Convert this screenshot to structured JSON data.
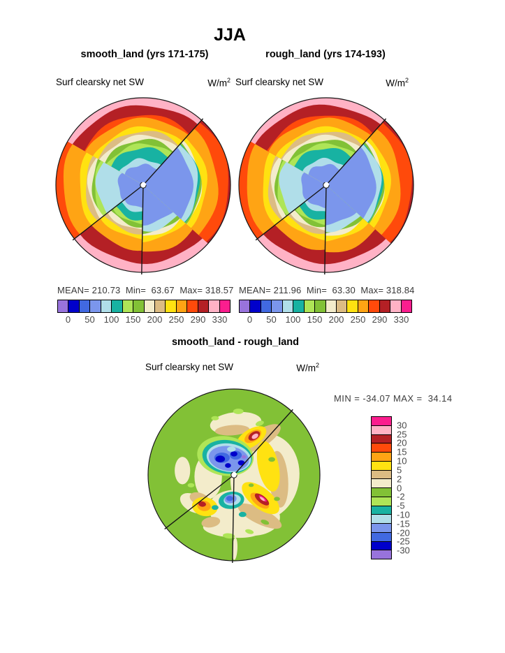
{
  "page": {
    "bg": "#ffffff",
    "title": "JJA"
  },
  "panels": [
    {
      "title": "smooth_land (yrs 171-175)",
      "var_label": "Surf clearsky net SW",
      "units_base": "W/m",
      "units_exp": "2",
      "stats_line": "MEAN= 210.73  Min=  63.67  Max= 318.57"
    },
    {
      "title": "rough_land (yrs 174-193)",
      "var_label": "Surf clearsky net SW",
      "units_base": "W/m",
      "units_exp": "2",
      "stats_line": "MEAN= 211.96  Min=  63.30  Max= 318.84"
    }
  ],
  "diff_panel": {
    "title": "smooth_land - rough_land",
    "var_label": "Surf clearsky net SW",
    "units_base": "W/m",
    "units_exp": "2",
    "minmax_line": "MIN = -34.07 MAX =  34.14"
  },
  "palette": {
    "purple": "#9873DC",
    "darkblue": "#0000CB",
    "royalblue": "#4169E1",
    "cornflower": "#7B96EC",
    "palecyan": "#B0DEE9",
    "teal": "#18B2A2",
    "lightgreen": "#AEE557",
    "green": "#82C136",
    "cream": "#F3ECCB",
    "tan": "#DCBC83",
    "yellow": "#FFE211",
    "orange": "#FFA414",
    "redorange": "#FF4A0B",
    "darkred": "#B42025",
    "pink": "#FFB2C5",
    "magenta": "#FB1E8E"
  },
  "colorbar_h": {
    "cells": [
      "purple",
      "darkblue",
      "royalblue",
      "cornflower",
      "palecyan",
      "teal",
      "lightgreen",
      "green",
      "cream",
      "tan",
      "yellow",
      "orange",
      "redorange",
      "darkred",
      "pink",
      "magenta"
    ],
    "ticks": [
      "0",
      "50",
      "100",
      "150",
      "200",
      "250",
      "290",
      "330"
    ]
  },
  "colorbar_v": {
    "cells": [
      "magenta",
      "pink",
      "darkred",
      "redorange",
      "orange",
      "yellow",
      "tan",
      "cream",
      "green",
      "lightgreen",
      "teal",
      "palecyan",
      "cornflower",
      "royalblue",
      "darkblue",
      "purple"
    ],
    "ticks": [
      "30",
      "25",
      "20",
      "15",
      "10",
      "5",
      "2",
      "0",
      "-2",
      "-5",
      "-10",
      "-15",
      "-20",
      "-25",
      "-30"
    ]
  },
  "polar_band_model": {
    "sector_line_angles_deg": [
      48,
      218,
      269
    ],
    "sectors": [
      {
        "a1": 48,
        "a2": 150,
        "bands": [
          [
            "pink",
            1.0
          ],
          [
            "darkred",
            0.92
          ],
          [
            "redorange",
            0.8
          ],
          [
            "orange",
            0.76
          ],
          [
            "yellow",
            0.66
          ],
          [
            "tan",
            0.615
          ],
          [
            "cream",
            0.57
          ],
          [
            "green",
            0.52
          ],
          [
            "lightgreen",
            0.475
          ],
          [
            "teal",
            0.43
          ],
          [
            "palecyan",
            0.3
          ],
          [
            "cornflower",
            0.24
          ]
        ]
      },
      {
        "a1": 150,
        "a2": 218,
        "bands": [
          [
            "redorange",
            1.0
          ],
          [
            "orange",
            0.92
          ],
          [
            "yellow",
            0.74
          ],
          [
            "tan",
            0.66
          ],
          [
            "cream",
            0.625
          ],
          [
            "green",
            0.59
          ],
          [
            "lightgreen",
            0.56
          ],
          [
            "palecyan",
            0.53
          ],
          [
            "cornflower",
            0.28
          ]
        ]
      },
      {
        "a1": 218,
        "a2": 269,
        "bands": [
          [
            "pink",
            1.0
          ],
          [
            "darkred",
            0.9
          ],
          [
            "orange",
            0.74
          ],
          [
            "yellow",
            0.62
          ],
          [
            "tan",
            0.565
          ],
          [
            "cream",
            0.52
          ],
          [
            "green",
            0.48
          ],
          [
            "lightgreen",
            0.44
          ],
          [
            "teal",
            0.4
          ],
          [
            "palecyan",
            0.32
          ],
          [
            "cornflower",
            0.26
          ]
        ]
      },
      {
        "a1": 269,
        "a2": 318,
        "bands": [
          [
            "pink",
            1.0
          ],
          [
            "darkred",
            0.9
          ],
          [
            "orange",
            0.77
          ],
          [
            "yellow",
            0.645
          ],
          [
            "cream",
            0.585
          ],
          [
            "green",
            0.555
          ],
          [
            "palecyan",
            0.525
          ],
          [
            "cornflower",
            0.455
          ]
        ]
      },
      {
        "a1": 318,
        "a2": 408,
        "bands": [
          [
            "darkred",
            1.0
          ],
          [
            "redorange",
            0.98
          ],
          [
            "orange",
            0.86
          ],
          [
            "yellow",
            0.73
          ],
          [
            "cream",
            0.67
          ],
          [
            "green",
            0.655
          ],
          [
            "teal",
            0.64
          ],
          [
            "palecyan",
            0.63
          ],
          [
            "cornflower",
            0.57
          ]
        ]
      }
    ]
  },
  "chart_data": [
    {
      "type": "heatmap",
      "projection": "south_polar_stereographic",
      "season": "JJA",
      "title": "smooth_land (yrs 171-175)",
      "variable": "Surf clearsky net SW",
      "units": "W/m2",
      "stats": {
        "mean": 210.73,
        "min": 63.67,
        "max": 318.57
      },
      "colorbar": {
        "orientation": "horizontal",
        "tick_values": [
          0,
          50,
          100,
          150,
          200,
          250,
          290,
          330
        ],
        "cell_colors": [
          "purple",
          "darkblue",
          "royalblue",
          "cornflower",
          "palecyan",
          "teal",
          "lightgreen",
          "green",
          "cream",
          "tan",
          "yellow",
          "orange",
          "redorange",
          "darkred",
          "pink",
          "magenta"
        ]
      }
    },
    {
      "type": "heatmap",
      "projection": "south_polar_stereographic",
      "season": "JJA",
      "title": "rough_land (yrs 174-193)",
      "variable": "Surf clearsky net SW",
      "units": "W/m2",
      "stats": {
        "mean": 211.96,
        "min": 63.3,
        "max": 318.84
      },
      "colorbar": {
        "orientation": "horizontal",
        "tick_values": [
          0,
          50,
          100,
          150,
          200,
          250,
          290,
          330
        ],
        "cell_colors": [
          "purple",
          "darkblue",
          "royalblue",
          "cornflower",
          "palecyan",
          "teal",
          "lightgreen",
          "green",
          "cream",
          "tan",
          "yellow",
          "orange",
          "redorange",
          "darkred",
          "pink",
          "magenta"
        ]
      }
    },
    {
      "type": "heatmap",
      "projection": "south_polar_stereographic",
      "season": "JJA",
      "title": "smooth_land - rough_land",
      "variable": "Surf clearsky net SW",
      "units": "W/m2",
      "stats": {
        "min": -34.07,
        "max": 34.14
      },
      "colorbar": {
        "orientation": "vertical",
        "tick_values": [
          30,
          25,
          20,
          15,
          10,
          5,
          2,
          0,
          -2,
          -5,
          -10,
          -15,
          -20,
          -25,
          -30
        ],
        "cell_colors": [
          "magenta",
          "pink",
          "darkred",
          "redorange",
          "orange",
          "yellow",
          "tan",
          "cream",
          "green",
          "lightgreen",
          "teal",
          "palecyan",
          "cornflower",
          "royalblue",
          "darkblue",
          "purple"
        ]
      },
      "base_color": "green",
      "sector_line_angles_deg": [
        48,
        218,
        269
      ],
      "approx_regions": [
        [
          "cream",
          0.36,
          0.02,
          0.4,
          0.5,
          8
        ],
        [
          "cream",
          0.12,
          0.44,
          0.42,
          0.26,
          12
        ],
        [
          "cream",
          0.02,
          -0.6,
          0.3,
          0.13,
          -6
        ],
        [
          "cream",
          -0.3,
          0.02,
          0.16,
          0.26,
          0
        ],
        [
          "cream",
          -0.47,
          0.33,
          0.17,
          0.1,
          28
        ],
        [
          "cream",
          -0.02,
          0.63,
          0.34,
          0.1,
          4
        ],
        [
          "cream",
          -0.6,
          -0.05,
          0.09,
          0.16,
          0
        ],
        [
          "cream",
          0.01,
          0.86,
          0.03,
          0.13,
          3
        ],
        [
          "tan",
          0.3,
          -0.42,
          0.28,
          0.1,
          -32
        ],
        [
          "tan",
          0.52,
          0.05,
          0.11,
          0.33,
          -4
        ],
        [
          "tan",
          0.3,
          0.48,
          0.28,
          0.09,
          26
        ],
        [
          "tan",
          -0.02,
          -0.52,
          0.2,
          0.06,
          -4
        ],
        [
          "tan",
          -0.4,
          0.28,
          0.12,
          0.07,
          20
        ],
        [
          "tan",
          -0.27,
          0.55,
          0.11,
          0.06,
          -10
        ],
        [
          "yellow",
          0.2,
          -0.43,
          0.2,
          0.1,
          -33
        ],
        [
          "yellow",
          0.4,
          -0.1,
          0.12,
          0.3,
          -12
        ],
        [
          "yellow",
          0.31,
          0.27,
          0.26,
          0.12,
          38
        ],
        [
          "yellow",
          -0.34,
          0.37,
          0.15,
          0.11,
          10
        ],
        [
          "orange",
          0.22,
          -0.45,
          0.11,
          0.06,
          -33
        ],
        [
          "orange",
          0.3,
          0.3,
          0.13,
          0.06,
          38
        ],
        [
          "orange",
          -0.35,
          0.36,
          0.08,
          0.06,
          10
        ],
        [
          "darkred",
          0.235,
          -0.455,
          0.075,
          0.045,
          -33
        ],
        [
          "darkred",
          0.325,
          0.285,
          0.1,
          0.042,
          38
        ],
        [
          "darkred",
          -0.37,
          0.34,
          0.045,
          0.03,
          10
        ],
        [
          "pink",
          0.245,
          -0.45,
          0.042,
          0.026,
          -33
        ],
        [
          "magenta",
          0.335,
          0.275,
          0.055,
          0.018,
          38
        ],
        [
          "pink",
          0.33,
          0.28,
          0.035,
          0.014,
          38
        ],
        [
          "lightgreen",
          -0.1,
          -0.22,
          0.33,
          0.23,
          8
        ],
        [
          "teal",
          -0.08,
          -0.21,
          0.29,
          0.195,
          8
        ],
        [
          "palecyan",
          -0.06,
          -0.2,
          0.26,
          0.165,
          8
        ],
        [
          "cornflower",
          -0.06,
          -0.19,
          0.235,
          0.145,
          8
        ],
        [
          "royalblue",
          -0.14,
          -0.2,
          0.09,
          0.06,
          0
        ],
        [
          "royalblue",
          0.02,
          -0.23,
          0.07,
          0.05,
          0
        ],
        [
          "darkblue",
          -0.16,
          -0.185,
          0.055,
          0.04,
          0
        ],
        [
          "darkblue",
          0.0,
          -0.245,
          0.04,
          0.03,
          0
        ],
        [
          "darkblue",
          0.085,
          -0.14,
          0.04,
          0.03,
          0
        ],
        [
          "darkblue",
          -0.07,
          -0.11,
          0.035,
          0.028,
          0
        ],
        [
          "purple",
          0.115,
          -0.21,
          0.026,
          0.02,
          0
        ],
        [
          "palecyan",
          -0.03,
          -0.3,
          0.05,
          0.03,
          0
        ],
        [
          "teal",
          -0.03,
          0.295,
          0.15,
          0.1,
          -8
        ],
        [
          "palecyan",
          -0.02,
          0.29,
          0.1,
          0.065,
          -8
        ],
        [
          "cornflower",
          -0.04,
          0.28,
          0.07,
          0.05,
          -8
        ],
        [
          "royalblue",
          -0.05,
          0.275,
          0.04,
          0.03,
          0
        ],
        [
          "teal",
          0.1,
          0.46,
          0.045,
          0.03,
          0
        ],
        [
          "teal",
          -0.22,
          0.38,
          0.04,
          0.028,
          0
        ],
        [
          "lightgreen",
          0.05,
          -0.74,
          0.06,
          0.032,
          0
        ],
        [
          "lightgreen",
          -0.22,
          -0.66,
          0.045,
          0.025,
          0
        ],
        [
          "lightgreen",
          0.3,
          -0.6,
          0.05,
          0.028,
          -20
        ],
        [
          "lightgreen",
          -0.06,
          0.71,
          0.07,
          0.03,
          5
        ],
        [
          "lightgreen",
          0.18,
          0.66,
          0.05,
          0.025,
          15
        ],
        [
          "lightgreen",
          -0.5,
          0.12,
          0.04,
          0.025,
          0
        ],
        [
          "green",
          0.44,
          -0.18,
          0.04,
          0.028,
          0
        ],
        [
          "green",
          0.5,
          0.28,
          0.035,
          0.024,
          0
        ],
        [
          "green",
          0.2,
          0.12,
          0.03,
          0.02,
          0
        ],
        [
          "green",
          0.36,
          0.55,
          0.05,
          0.025,
          20
        ]
      ]
    }
  ]
}
